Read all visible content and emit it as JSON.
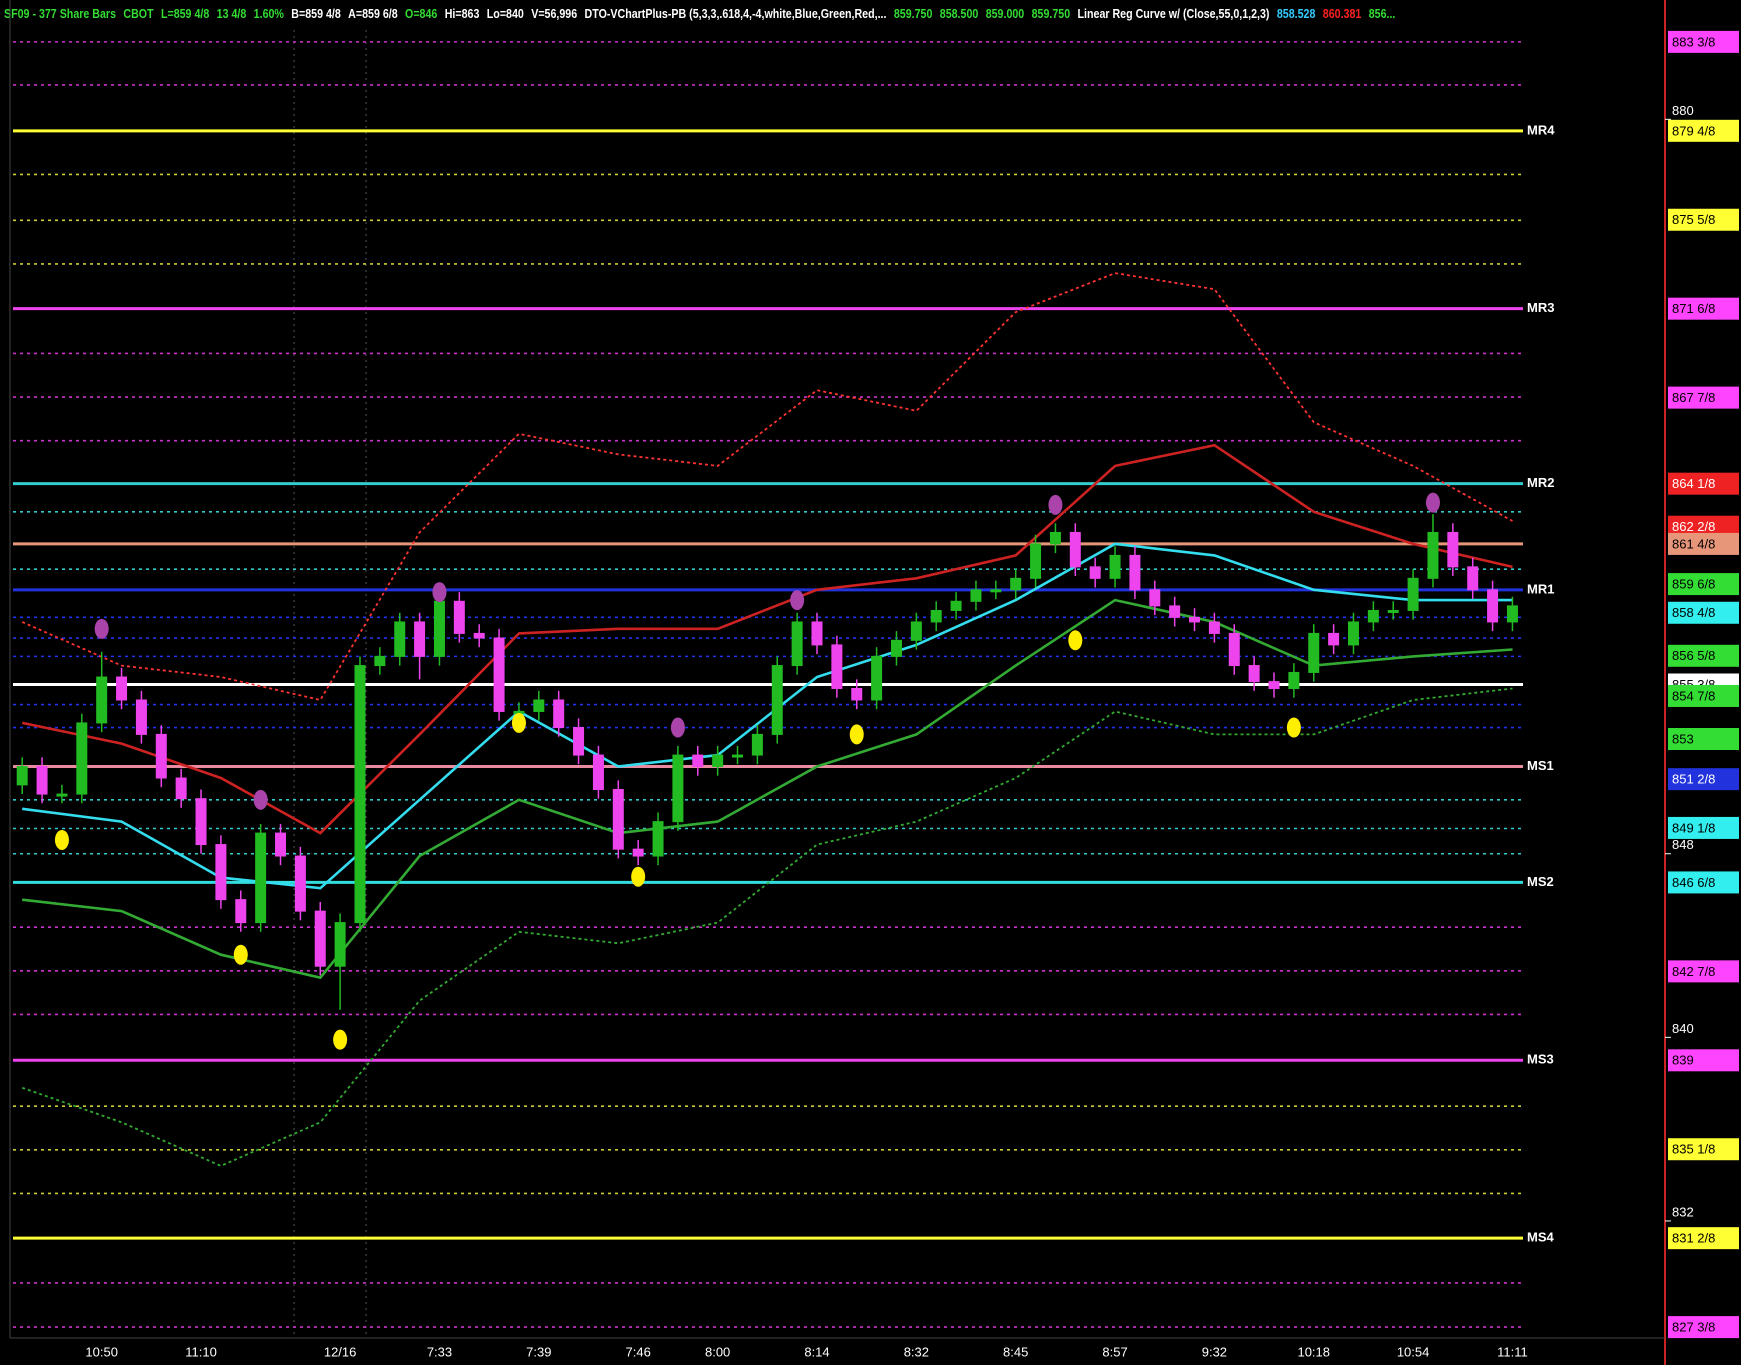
{
  "chart_data": {
    "type": "candlestick",
    "header": [
      {
        "text": "SF09 - 377 Share Bars",
        "color": "#33dd33"
      },
      {
        "text": "CBOT",
        "color": "#33dd33"
      },
      {
        "text": "L=859 4/8",
        "color": "#33dd33"
      },
      {
        "text": "13 4/8",
        "color": "#33dd33"
      },
      {
        "text": "1.60%",
        "color": "#33dd33"
      },
      {
        "text": "B=859 4/8",
        "color": "#ffffff"
      },
      {
        "text": "A=859 6/8",
        "color": "#ffffff"
      },
      {
        "text": "O=846",
        "color": "#33dd33"
      },
      {
        "text": "Hi=863",
        "color": "#ffffff"
      },
      {
        "text": "Lo=840",
        "color": "#ffffff"
      },
      {
        "text": "V=56,996",
        "color": "#ffffff"
      },
      {
        "text": "DTO-VChartPlus-PB (5,3,3,.618,4,-4,white,Blue,Green,Red,...",
        "color": "#ffffff"
      },
      {
        "text": "859.750",
        "color": "#33dd33"
      },
      {
        "text": "858.500",
        "color": "#33dd33"
      },
      {
        "text": "859.000",
        "color": "#33dd33"
      },
      {
        "text": "859.750",
        "color": "#33dd33"
      },
      {
        "text": "Linear Reg Curve w/ (Close,55,0,1,2,3)",
        "color": "#ffffff"
      },
      {
        "text": "858.528",
        "color": "#33ccff"
      },
      {
        "text": "860.381",
        "color": "#ff2222"
      },
      {
        "text": "856...",
        "color": "#33dd33"
      }
    ],
    "categories": [
      null,
      null,
      null,
      null,
      "10:50",
      null,
      null,
      null,
      null,
      "11:10",
      null,
      null,
      null,
      null,
      null,
      null,
      "12/16",
      null,
      null,
      null,
      null,
      "7:33",
      null,
      null,
      null,
      null,
      "7:39",
      null,
      null,
      null,
      null,
      "7:46",
      null,
      null,
      null,
      "8:00",
      null,
      null,
      null,
      null,
      "8:14",
      null,
      null,
      null,
      null,
      "8:32",
      null,
      null,
      null,
      null,
      "8:45",
      null,
      null,
      null,
      null,
      "8:57",
      null,
      null,
      null,
      null,
      "9:32",
      null,
      null,
      null,
      null,
      "10:18",
      null,
      null,
      null,
      null,
      "10:54",
      null,
      null,
      null,
      null,
      "11:11"
    ],
    "open": [
      851.0,
      851.8,
      850.6,
      850.6,
      853.7,
      855.7,
      854.7,
      853.2,
      851.3,
      850.4,
      848.4,
      846.0,
      845.0,
      848.9,
      847.9,
      845.5,
      843.1,
      845.0,
      856.2,
      856.6,
      858.1,
      856.6,
      859.0,
      857.6,
      857.4,
      854.2,
      854.2,
      854.7,
      853.5,
      852.3,
      850.8,
      848.2,
      847.9,
      849.4,
      852.3,
      851.8,
      852.3,
      852.3,
      853.2,
      856.2,
      858.1,
      857.1,
      855.2,
      854.7,
      856.6,
      857.3,
      858.1,
      858.6,
      859.0,
      859.5,
      859.5,
      860.0,
      861.5,
      862.0,
      860.5,
      860.0,
      861.0,
      859.5,
      858.8,
      858.3,
      858.1,
      857.6,
      856.2,
      855.5,
      855.2,
      855.9,
      857.6,
      857.1,
      858.1,
      858.6,
      858.6,
      860.0,
      862.0,
      860.5,
      859.5,
      858.1
    ],
    "high": [
      852.2,
      852.2,
      851.0,
      854.1,
      856.8,
      856.1,
      855.1,
      853.6,
      851.7,
      850.8,
      848.8,
      846.4,
      849.3,
      849.3,
      848.3,
      845.9,
      845.4,
      856.6,
      857.0,
      858.5,
      858.5,
      859.4,
      859.4,
      858.0,
      857.8,
      854.6,
      855.1,
      855.1,
      853.9,
      852.7,
      851.2,
      848.6,
      849.8,
      852.7,
      852.7,
      852.7,
      852.7,
      853.6,
      856.6,
      858.5,
      858.5,
      857.5,
      855.6,
      857.0,
      857.7,
      858.5,
      859.0,
      859.4,
      859.9,
      859.9,
      860.4,
      861.9,
      862.4,
      862.4,
      860.9,
      861.4,
      861.4,
      859.9,
      859.2,
      858.7,
      858.5,
      858.0,
      856.6,
      855.9,
      856.3,
      858.0,
      858.0,
      858.5,
      859.0,
      859.0,
      860.4,
      862.8,
      862.4,
      860.9,
      859.9,
      859.2
    ],
    "low": [
      850.6,
      850.2,
      850.2,
      850.2,
      853.3,
      854.3,
      852.8,
      850.9,
      850.0,
      848.0,
      845.6,
      844.6,
      844.6,
      847.5,
      845.1,
      842.7,
      841.2,
      844.6,
      855.8,
      856.2,
      855.6,
      856.2,
      857.2,
      857.0,
      853.8,
      853.8,
      853.8,
      853.1,
      851.9,
      850.4,
      847.8,
      847.5,
      847.5,
      849.0,
      851.4,
      851.4,
      851.9,
      851.9,
      852.8,
      855.8,
      856.7,
      854.8,
      854.3,
      854.3,
      856.2,
      856.9,
      857.7,
      858.2,
      858.6,
      859.1,
      859.1,
      859.6,
      861.1,
      860.1,
      859.6,
      859.6,
      859.1,
      858.4,
      857.9,
      857.7,
      857.2,
      855.8,
      855.1,
      854.8,
      854.8,
      855.5,
      856.7,
      856.7,
      857.7,
      858.2,
      858.2,
      859.6,
      860.1,
      859.1,
      857.7,
      857.7
    ],
    "close": [
      851.8,
      850.6,
      850.6,
      853.7,
      855.7,
      854.7,
      853.2,
      851.3,
      850.4,
      848.4,
      846.0,
      845.0,
      848.9,
      847.9,
      845.5,
      843.1,
      845.0,
      856.2,
      856.6,
      858.1,
      856.6,
      859.0,
      857.6,
      857.4,
      854.2,
      854.2,
      854.7,
      853.5,
      852.3,
      850.8,
      848.2,
      847.9,
      849.4,
      852.3,
      851.8,
      852.3,
      852.3,
      853.2,
      856.2,
      858.1,
      857.1,
      855.2,
      854.7,
      856.6,
      857.3,
      858.1,
      858.6,
      859.0,
      859.5,
      859.5,
      860.0,
      861.5,
      862.0,
      860.5,
      860.0,
      861.0,
      859.5,
      858.8,
      858.3,
      858.1,
      857.6,
      856.2,
      855.5,
      855.2,
      855.9,
      857.6,
      857.1,
      858.1,
      858.6,
      858.6,
      860.0,
      862.0,
      860.5,
      859.5,
      858.1,
      858.8
    ],
    "up_color": "#22bb22",
    "down_color": "#ee44ee",
    "indicator_x": [
      0,
      5,
      10,
      15,
      20,
      25,
      30,
      35,
      40,
      45,
      50,
      55,
      60,
      65,
      70,
      75
    ],
    "indicators": [
      {
        "color": "#ff3333",
        "style": "dotted",
        "values": [
          858.1,
          856.2,
          855.7,
          854.7,
          862.0,
          866.3,
          865.4,
          864.9,
          868.2,
          867.3,
          871.6,
          873.3,
          872.6,
          866.8,
          864.9,
          862.5
        ]
      },
      {
        "color": "#cc2222",
        "style": "solid",
        "values": [
          853.7,
          852.8,
          851.3,
          848.9,
          853.2,
          857.6,
          857.8,
          857.8,
          859.5,
          860.0,
          861.0,
          864.9,
          865.8,
          862.9,
          861.5,
          860.5
        ]
      },
      {
        "color": "#33ddee",
        "style": "solid",
        "values": [
          849.96,
          849.4,
          846.96,
          846.5,
          850.35,
          854.2,
          851.8,
          852.3,
          855.7,
          857.1,
          859.05,
          861.5,
          861.0,
          859.5,
          859.05,
          859.05
        ]
      },
      {
        "color": "#33aa33",
        "style": "solid",
        "values": [
          846.0,
          845.5,
          843.6,
          842.6,
          847.9,
          850.35,
          848.9,
          849.4,
          851.8,
          853.2,
          856.2,
          859.05,
          858.1,
          856.2,
          856.6,
          856.9
        ]
      },
      {
        "color": "#33aa33",
        "style": "dotted",
        "values": [
          837.8,
          836.3,
          834.4,
          836.3,
          841.6,
          844.6,
          844.1,
          845.0,
          848.4,
          849.4,
          851.3,
          854.2,
          853.2,
          853.2,
          854.7,
          855.2
        ]
      }
    ],
    "signal_dots": [
      {
        "color": "#ffee00",
        "x": [
          2,
          11,
          16,
          25,
          31,
          42,
          53,
          64
        ],
        "values": [
          848.6,
          843.6,
          839.9,
          853.7,
          847.0,
          853.2,
          857.3,
          853.5
        ]
      },
      {
        "color": "#aa44aa",
        "x": [
          4,
          12,
          21,
          33,
          39,
          52,
          71
        ],
        "values": [
          857.8,
          850.35,
          859.4,
          853.5,
          859.05,
          863.2,
          863.3
        ]
      }
    ],
    "levels": [
      {
        "value": 883.375,
        "color": "#cc33cc",
        "style": "dotted"
      },
      {
        "value": 881.5,
        "color": "#cc33cc",
        "style": "dotted"
      },
      {
        "value": 879.5,
        "name": "MR4",
        "color": "#ffff33",
        "style": "solid"
      },
      {
        "value": 877.6,
        "color": "#cccc33",
        "style": "dotted"
      },
      {
        "value": 875.6,
        "color": "#cccc33",
        "style": "dotted"
      },
      {
        "value": 873.7,
        "color": "#cccc33",
        "style": "dotted"
      },
      {
        "value": 871.75,
        "name": "MR3",
        "color": "#ee44ee",
        "style": "solid"
      },
      {
        "value": 869.8,
        "color": "#cc33cc",
        "style": "dotted"
      },
      {
        "value": 867.9,
        "color": "#cc33cc",
        "style": "dotted"
      },
      {
        "value": 866.0,
        "color": "#cc33cc",
        "style": "dotted"
      },
      {
        "value": 864.125,
        "name": "MR2",
        "color": "#33cccc",
        "style": "solid"
      },
      {
        "value": 862.9,
        "color": "#33cccc",
        "style": "dotted"
      },
      {
        "value": 861.5,
        "color": "#e8967a",
        "style": "solid"
      },
      {
        "value": 860.4,
        "color": "#33cccc",
        "style": "dotted"
      },
      {
        "value": 859.5,
        "name": "MR1",
        "color": "#2233dd",
        "style": "solid"
      },
      {
        "value": 858.3,
        "color": "#2233ee",
        "style": "dotted"
      },
      {
        "value": 857.4,
        "color": "#2233ee",
        "style": "dotted"
      },
      {
        "value": 856.6,
        "color": "#2233ee",
        "style": "dotted"
      },
      {
        "value": 855.375,
        "color": "#ffffff",
        "style": "solid"
      },
      {
        "value": 854.5,
        "color": "#2233ee",
        "style": "dotted"
      },
      {
        "value": 853.5,
        "color": "#2233ee",
        "style": "dotted"
      },
      {
        "value": 851.8,
        "name": "MS1",
        "color": "#e88aa0",
        "style": "solid"
      },
      {
        "value": 850.35,
        "color": "#33cccc",
        "style": "dotted"
      },
      {
        "value": 849.1,
        "color": "#33cccc",
        "style": "dotted"
      },
      {
        "value": 848.0,
        "color": "#33cccc",
        "style": "dotted"
      },
      {
        "value": 846.75,
        "name": "MS2",
        "color": "#33dddd",
        "style": "solid"
      },
      {
        "value": 844.8,
        "color": "#cc33cc",
        "style": "dotted"
      },
      {
        "value": 842.9,
        "color": "#cc33cc",
        "style": "dotted"
      },
      {
        "value": 841.0,
        "color": "#cc33cc",
        "style": "dotted"
      },
      {
        "value": 839.0,
        "name": "MS3",
        "color": "#ee44ee",
        "style": "solid"
      },
      {
        "value": 837.0,
        "color": "#cccc33",
        "style": "dotted"
      },
      {
        "value": 835.1,
        "color": "#cccc33",
        "style": "dotted"
      },
      {
        "value": 833.2,
        "color": "#cccc33",
        "style": "dotted"
      },
      {
        "value": 831.25,
        "name": "MS4",
        "color": "#ffff33",
        "style": "solid"
      },
      {
        "value": 829.3,
        "color": "#cc33cc",
        "style": "dotted"
      },
      {
        "value": 827.375,
        "color": "#cc33cc",
        "style": "dotted"
      }
    ],
    "price_tags": [
      {
        "value": 883.375,
        "label": "883 3/8",
        "color": "#ff44ff"
      },
      {
        "value": 879.5,
        "label": "879 4/8",
        "color": "#ffff33"
      },
      {
        "value": 875.625,
        "label": "875 5/8",
        "color": "#ffff33"
      },
      {
        "value": 871.75,
        "label": "871 6/8",
        "color": "#ff44ff"
      },
      {
        "value": 867.875,
        "label": "867 7/8",
        "color": "#ff44ff"
      },
      {
        "value": 864.125,
        "label": "864 1/8",
        "color": "#ee2222"
      },
      {
        "value": 862.25,
        "label": "862 2/8",
        "color": "#ee2222"
      },
      {
        "value": 861.5,
        "label": "861 4/8",
        "color": "#e8967a"
      },
      {
        "value": 859.75,
        "label": "859 6/8",
        "color": "#33dd33"
      },
      {
        "value": 858.5,
        "label": "858 4/8",
        "color": "#33eeee"
      },
      {
        "value": 856.625,
        "label": "856 5/8",
        "color": "#33dd33"
      },
      {
        "value": 855.375,
        "label": "855 3/8",
        "color": "#ffffff"
      },
      {
        "value": 854.875,
        "label": "854 7/8",
        "color": "#33dd33"
      },
      {
        "value": 853,
        "label": "853",
        "color": "#33dd33"
      },
      {
        "value": 851.25,
        "label": "851 2/8",
        "color": "#2233dd"
      },
      {
        "value": 849.125,
        "label": "849 1/8",
        "color": "#33eeee"
      },
      {
        "value": 846.75,
        "label": "846 6/8",
        "color": "#33eeee"
      },
      {
        "value": 842.875,
        "label": "842 7/8",
        "color": "#ff44ff"
      },
      {
        "value": 839,
        "label": "839",
        "color": "#ff44ff"
      },
      {
        "value": 835.125,
        "label": "835 1/8",
        "color": "#ffff33"
      },
      {
        "value": 831.25,
        "label": "831 2/8",
        "color": "#ffff33"
      },
      {
        "value": 827.375,
        "label": "827 3/8",
        "color": "#ff44ff"
      }
    ],
    "ylim": [
      826.9,
      885.2
    ],
    "yticks": [
      832,
      840,
      848,
      880
    ]
  }
}
